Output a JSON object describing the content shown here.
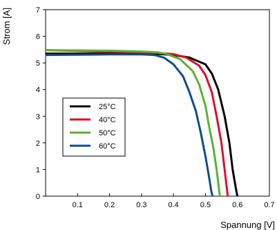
{
  "chart_data": {
    "type": "line",
    "xlabel": "Spannung [V]",
    "ylabel": "Strom [A]",
    "xlim": [
      0,
      0.7
    ],
    "ylim": [
      0,
      7
    ],
    "x_ticks": [
      "0.1",
      "0.2",
      "0.3",
      "0.4",
      "0.5",
      "0.6",
      "0.7"
    ],
    "y_ticks": [
      "0",
      "1",
      "2",
      "3",
      "4",
      "5",
      "6",
      "7"
    ],
    "grid": false,
    "legend_position": "left-center",
    "series": [
      {
        "name": "25°C",
        "color": "#000000",
        "x": [
          0,
          0.1,
          0.2,
          0.3,
          0.35,
          0.4,
          0.45,
          0.5,
          0.52,
          0.54,
          0.56,
          0.575,
          0.585,
          0.595,
          0.6
        ],
        "y": [
          5.35,
          5.35,
          5.35,
          5.35,
          5.34,
          5.3,
          5.2,
          4.95,
          4.6,
          4.0,
          3.0,
          2.0,
          1.0,
          0.3,
          0
        ]
      },
      {
        "name": "40°C",
        "color": "#e00b2a",
        "x": [
          0,
          0.1,
          0.2,
          0.3,
          0.35,
          0.4,
          0.44,
          0.48,
          0.5,
          0.52,
          0.535,
          0.55,
          0.56,
          0.567,
          0.57
        ],
        "y": [
          5.48,
          5.45,
          5.42,
          5.4,
          5.38,
          5.33,
          5.2,
          4.9,
          4.55,
          3.9,
          3.0,
          2.0,
          1.0,
          0.3,
          0
        ]
      },
      {
        "name": "50°C",
        "color": "#5bb130",
        "x": [
          0,
          0.1,
          0.2,
          0.3,
          0.35,
          0.38,
          0.42,
          0.46,
          0.48,
          0.5,
          0.51,
          0.525,
          0.535,
          0.542,
          0.545
        ],
        "y": [
          5.48,
          5.47,
          5.46,
          5.43,
          5.4,
          5.33,
          5.15,
          4.7,
          4.2,
          3.4,
          2.7,
          1.8,
          1.0,
          0.3,
          0
        ]
      },
      {
        "name": "60°C",
        "color": "#0d4d8a",
        "x": [
          0,
          0.1,
          0.2,
          0.3,
          0.34,
          0.37,
          0.4,
          0.43,
          0.45,
          0.47,
          0.485,
          0.5,
          0.51,
          0.518,
          0.522
        ],
        "y": [
          5.3,
          5.31,
          5.32,
          5.32,
          5.3,
          5.2,
          4.95,
          4.5,
          3.9,
          3.2,
          2.4,
          1.5,
          0.8,
          0.2,
          0
        ]
      }
    ]
  }
}
